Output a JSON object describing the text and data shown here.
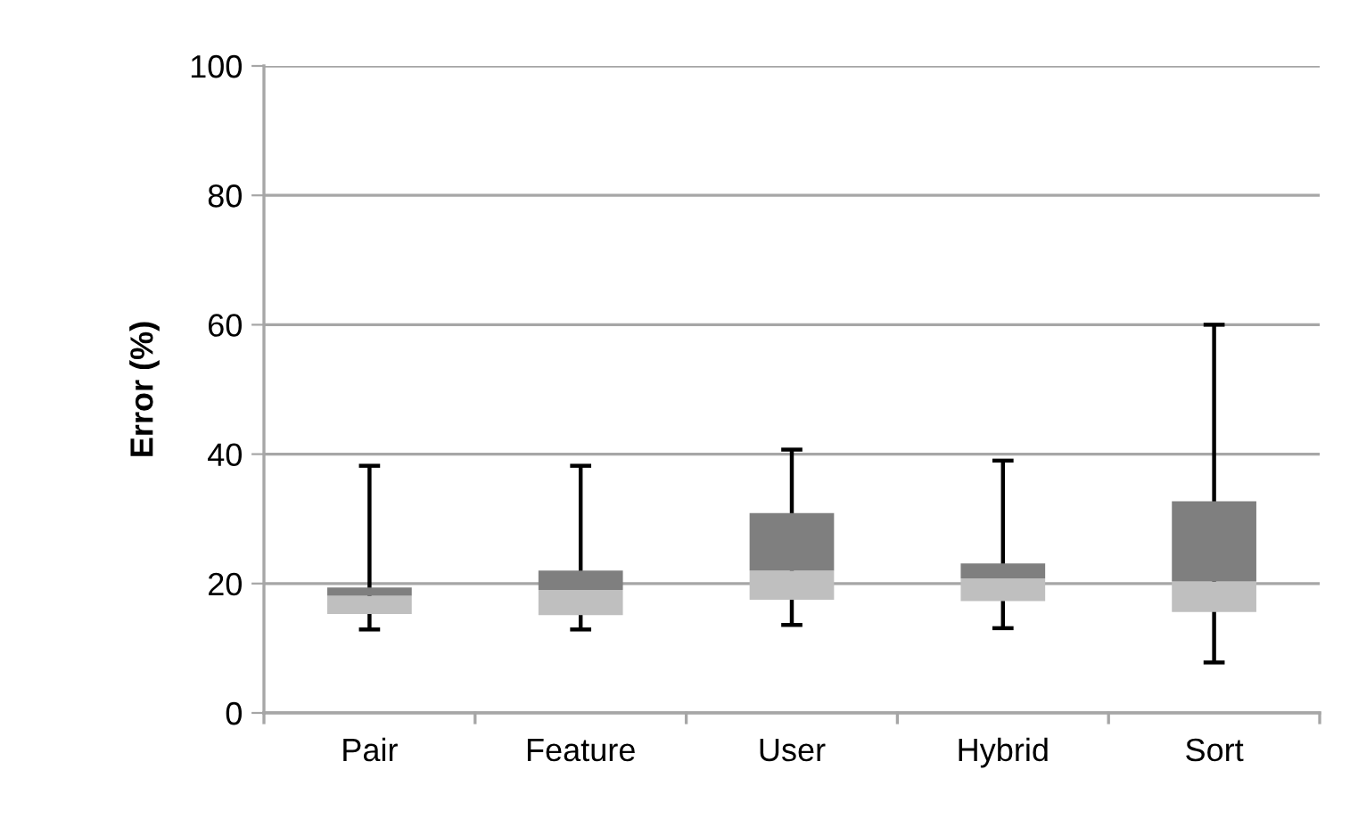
{
  "chart_data": {
    "type": "box",
    "ylabel": "Error (%)",
    "categories": [
      "Pair",
      "Feature",
      "User",
      "Hybrid",
      "Sort"
    ],
    "colors": [
      "#7f7f7f",
      "#7f7f7f",
      "#7f7f7f",
      "#7f7f7f",
      "#7f7f7f"
    ],
    "series": [
      {
        "color": "#bfbfbf",
        "boxes": [
          {
            "low": 12.9,
            "q1": 15.3,
            "median": 18.1,
            "q3": 19.4,
            "high": 38.2
          },
          {
            "low": 12.9,
            "q1": 15.1,
            "median": 19.0,
            "q3": 22.0,
            "high": 38.2
          },
          {
            "low": 13.6,
            "q1": 17.5,
            "median": 22.0,
            "q3": 30.9,
            "high": 40.7
          },
          {
            "low": 13.1,
            "q1": 17.3,
            "median": 20.8,
            "q3": 23.1,
            "high": 39.0
          },
          {
            "low": 7.8,
            "q1": 15.6,
            "median": 20.3,
            "q3": 32.7,
            "high": 60.0
          }
        ]
      }
    ],
    "ylim": [
      0,
      100
    ],
    "yticks": [
      0,
      20,
      40,
      60,
      80,
      100
    ],
    "grid": "y",
    "legend": false
  }
}
